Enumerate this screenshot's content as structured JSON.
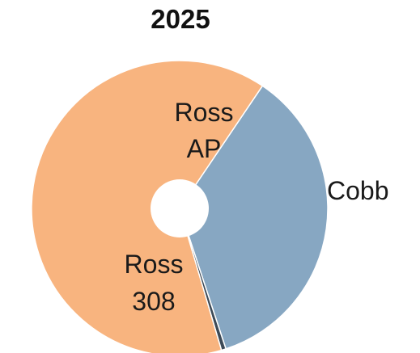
{
  "chart_data": {
    "type": "pie",
    "title": "2025",
    "slices": [
      {
        "label": "Ross AP",
        "value": 35.5,
        "color": "#87a7c2"
      },
      {
        "label": "Cobb",
        "value": 0.5,
        "color": "#3d4a57"
      },
      {
        "label": "Ross 308",
        "value": 64.0,
        "color": "#f8b47f"
      }
    ],
    "donut_hole": true,
    "legend": "none"
  }
}
